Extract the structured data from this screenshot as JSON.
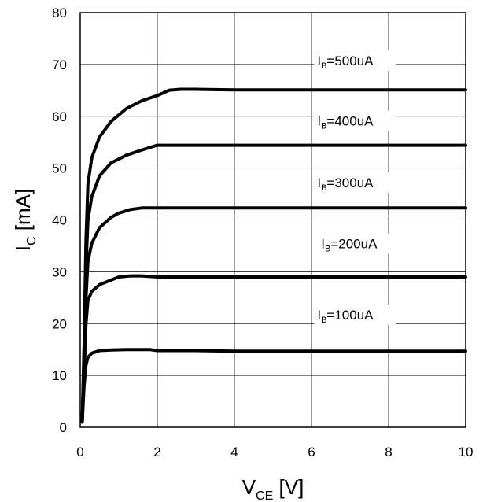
{
  "chart_data": {
    "type": "line",
    "title": "",
    "xlabel": "V",
    "xlabel_sub": "CE",
    "xlabel_unit": " [V]",
    "ylabel": "I",
    "ylabel_sub": "C",
    "ylabel_unit": " [mA]",
    "xlim": [
      0,
      10
    ],
    "ylim": [
      0,
      80
    ],
    "x_ticks": [
      0,
      2,
      4,
      6,
      8,
      10
    ],
    "y_ticks": [
      0,
      10,
      20,
      30,
      40,
      50,
      60,
      70,
      80
    ],
    "grid": true,
    "legend": "inline labels on curves",
    "series": [
      {
        "name": "I",
        "name_sub": "B",
        "name_rest": "=100uA",
        "label_at": [
          6.15,
          20.8
        ],
        "x": [
          0.05,
          0.1,
          0.15,
          0.2,
          0.3,
          0.5,
          0.8,
          1.2,
          1.8,
          2,
          3,
          4,
          6,
          8,
          10
        ],
        "y": [
          1,
          8,
          12,
          13.5,
          14.3,
          14.8,
          14.9,
          15,
          15,
          14.8,
          14.8,
          14.7,
          14.7,
          14.7,
          14.7
        ]
      },
      {
        "name": "I",
        "name_sub": "B",
        "name_rest": "=200uA",
        "label_at": [
          6.25,
          34.5
        ],
        "x": [
          0.05,
          0.1,
          0.15,
          0.2,
          0.3,
          0.5,
          0.8,
          1.0,
          1.3,
          1.6,
          2,
          3,
          4,
          6,
          8,
          10
        ],
        "y": [
          1,
          10,
          20,
          24.5,
          26.2,
          27.5,
          28.4,
          29,
          29.2,
          29.2,
          29,
          29,
          29,
          29,
          29,
          29
        ]
      },
      {
        "name": "I",
        "name_sub": "B",
        "name_rest": "=300uA",
        "label_at": [
          6.15,
          46.3
        ],
        "x": [
          0.05,
          0.1,
          0.15,
          0.2,
          0.3,
          0.5,
          0.8,
          1.0,
          1.3,
          1.6,
          2,
          3,
          4,
          6,
          8,
          10
        ],
        "y": [
          1,
          12,
          25,
          32,
          35.5,
          38.5,
          40.5,
          41.3,
          42,
          42.3,
          42.3,
          42.3,
          42.3,
          42.3,
          42.3,
          42.3
        ]
      },
      {
        "name": "I",
        "name_sub": "B",
        "name_rest": "=400uA",
        "label_at": [
          6.15,
          58.2
        ],
        "x": [
          0.05,
          0.1,
          0.15,
          0.2,
          0.3,
          0.5,
          0.8,
          1.2,
          1.6,
          1.9,
          2,
          3,
          4,
          6,
          8,
          10
        ],
        "y": [
          1,
          14,
          31,
          40,
          44.5,
          48.5,
          51,
          52.5,
          53.5,
          54.2,
          54.4,
          54.4,
          54.4,
          54.4,
          54.4,
          54.4
        ]
      },
      {
        "name": "I",
        "name_sub": "B",
        "name_rest": "=500uA",
        "label_at": [
          6.15,
          69.8
        ],
        "x": [
          0.05,
          0.1,
          0.15,
          0.2,
          0.3,
          0.5,
          0.8,
          1.2,
          1.6,
          2,
          2.3,
          2.6,
          3,
          4,
          6,
          8,
          10
        ],
        "y": [
          1,
          16,
          36,
          47,
          52,
          56,
          59,
          61.5,
          63,
          64,
          65,
          65.2,
          65.2,
          65.1,
          65.1,
          65.1,
          65.1
        ]
      }
    ]
  }
}
